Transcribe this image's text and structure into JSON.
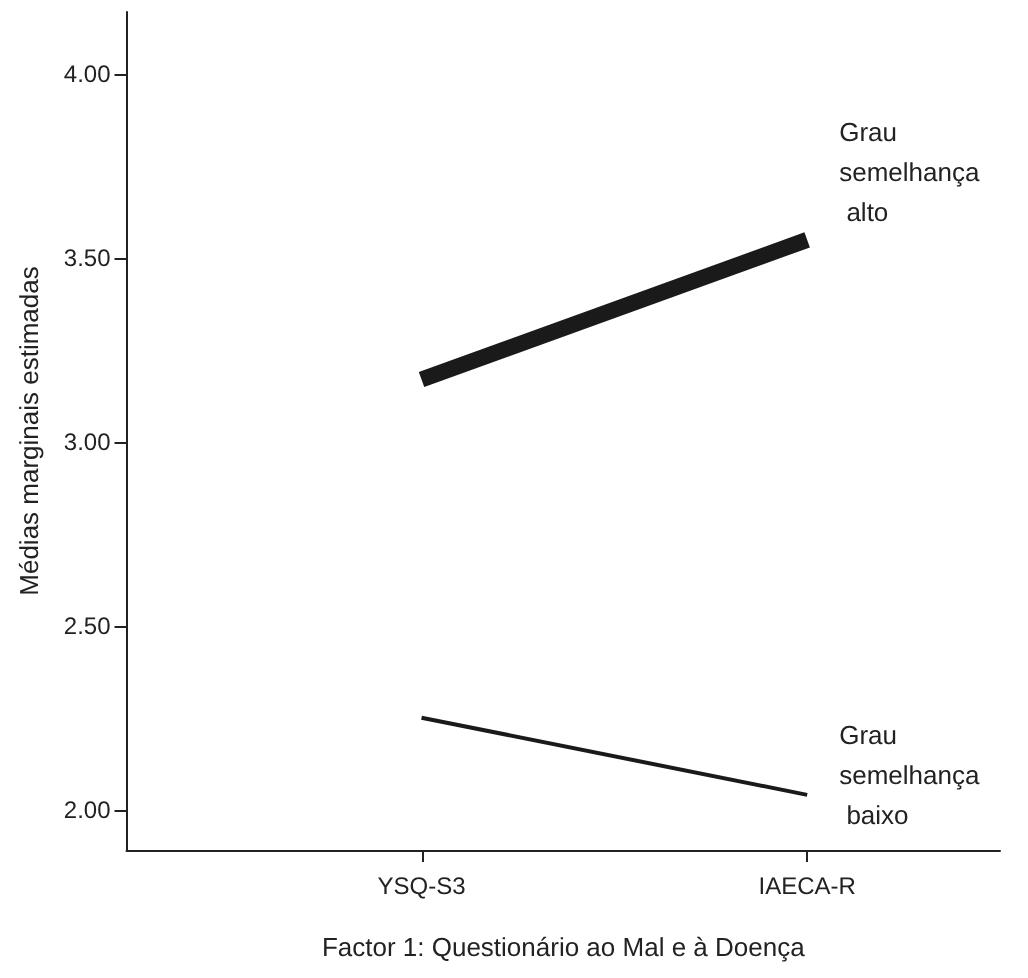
{
  "chart_data": {
    "type": "line",
    "xlabel": "Factor 1: Questionário ao Mal e à Doença",
    "ylabel": "Médias marginais estimadas",
    "categories": [
      "YSQ-S3",
      "IAECA-R"
    ],
    "series": [
      {
        "name": "Grau semelhança alto",
        "color": "#1a1a1a",
        "values": [
          3.17,
          3.55
        ]
      },
      {
        "name": "Grau semelhança baixo",
        "color": "#1a1a1a",
        "values": [
          2.25,
          2.04
        ]
      }
    ],
    "ylim": [
      1.89,
      4.17
    ],
    "yticks": [
      {
        "value": 2,
        "label": "2.00"
      },
      {
        "value": 2.5,
        "label": "2.50"
      },
      {
        "value": 3,
        "label": "3.00"
      },
      {
        "value": 3.5,
        "label": "3.50"
      },
      {
        "value": 4,
        "label": "4.00"
      }
    ],
    "grid": false,
    "legend": false,
    "marker": "none",
    "line_style": "solid"
  }
}
